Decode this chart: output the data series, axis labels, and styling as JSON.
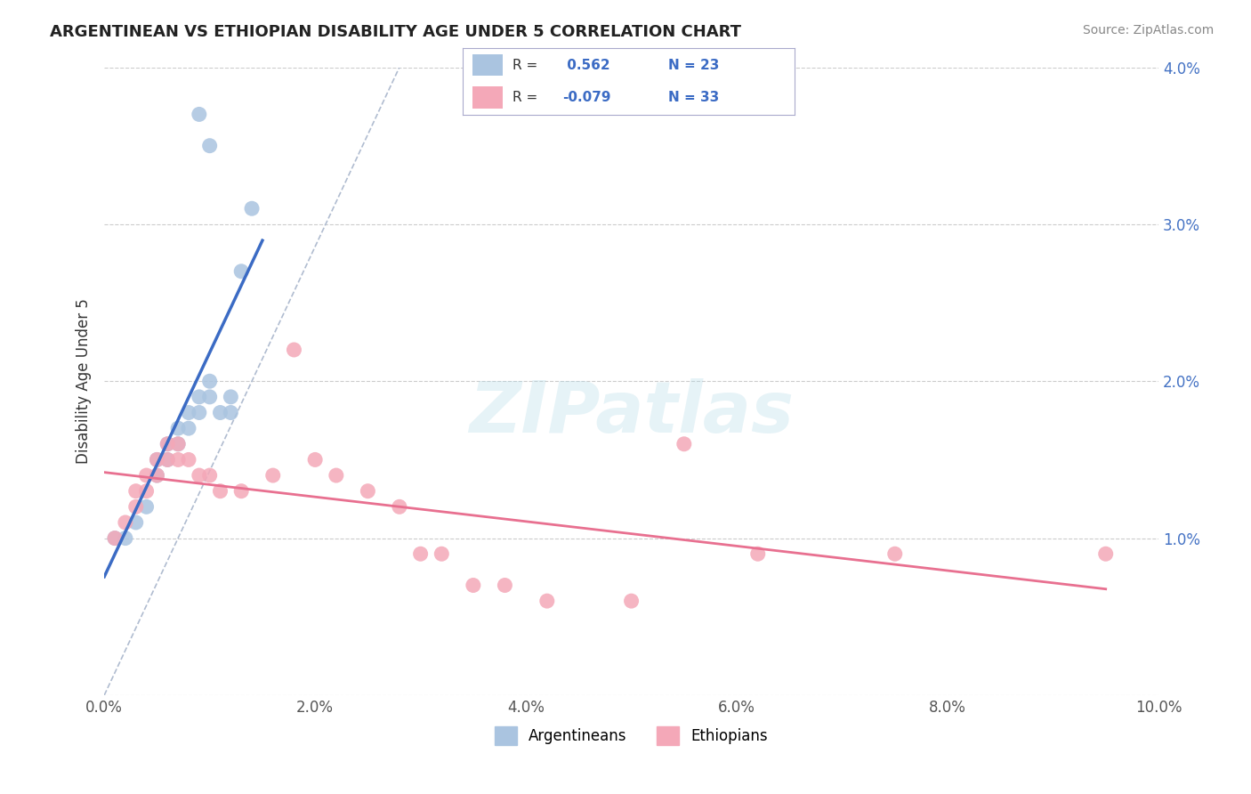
{
  "title": "ARGENTINEAN VS ETHIOPIAN DISABILITY AGE UNDER 5 CORRELATION CHART",
  "source": "Source: ZipAtlas.com",
  "ylabel": "Disability Age Under 5",
  "xlim": [
    0.0,
    0.1
  ],
  "ylim": [
    0.0,
    0.04
  ],
  "background_color": "#ffffff",
  "grid_color": "#cccccc",
  "argentinean_color": "#aac4e0",
  "ethiopian_color": "#f4a8b8",
  "argentinean_line_color": "#3b6bc4",
  "ethiopian_line_color": "#e87090",
  "R_argentinean": 0.562,
  "N_argentinean": 23,
  "R_ethiopian": -0.079,
  "N_ethiopian": 33,
  "legend_label_1": "Argentineans",
  "legend_label_2": "Ethiopians",
  "watermark": "ZIPatlas",
  "arg_x": [
    0.001,
    0.002,
    0.003,
    0.004,
    0.005,
    0.005,
    0.006,
    0.006,
    0.007,
    0.007,
    0.008,
    0.008,
    0.009,
    0.009,
    0.01,
    0.01,
    0.011,
    0.012,
    0.012,
    0.013,
    0.014,
    0.009,
    0.01
  ],
  "arg_y": [
    0.01,
    0.01,
    0.011,
    0.012,
    0.014,
    0.015,
    0.015,
    0.016,
    0.016,
    0.017,
    0.017,
    0.018,
    0.018,
    0.019,
    0.019,
    0.02,
    0.018,
    0.018,
    0.019,
    0.027,
    0.031,
    0.037,
    0.035
  ],
  "eth_x": [
    0.001,
    0.002,
    0.003,
    0.003,
    0.004,
    0.004,
    0.005,
    0.005,
    0.006,
    0.006,
    0.007,
    0.007,
    0.008,
    0.009,
    0.01,
    0.011,
    0.013,
    0.016,
    0.018,
    0.02,
    0.022,
    0.025,
    0.028,
    0.03,
    0.032,
    0.035,
    0.038,
    0.042,
    0.05,
    0.055,
    0.062,
    0.075,
    0.095
  ],
  "eth_y": [
    0.01,
    0.011,
    0.012,
    0.013,
    0.013,
    0.014,
    0.014,
    0.015,
    0.015,
    0.016,
    0.016,
    0.015,
    0.015,
    0.014,
    0.014,
    0.013,
    0.013,
    0.014,
    0.022,
    0.015,
    0.014,
    0.013,
    0.012,
    0.009,
    0.009,
    0.007,
    0.007,
    0.006,
    0.006,
    0.016,
    0.009,
    0.009,
    0.009
  ]
}
